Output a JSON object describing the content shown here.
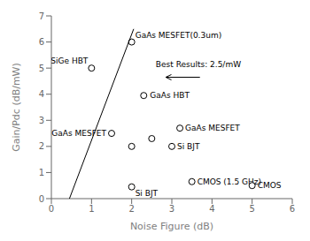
{
  "chart_data": {
    "type": "scatter",
    "xlabel": "Noise Figure (dB)",
    "ylabel": "Gain/Pdc (dB/mW)",
    "xlim": [
      0,
      6
    ],
    "ylim": [
      0,
      7
    ],
    "xticks": [
      0,
      1,
      2,
      3,
      4,
      5,
      6
    ],
    "yticks": [
      0,
      1,
      2,
      3,
      4,
      5,
      6,
      7
    ],
    "grid": false,
    "series": [
      {
        "type": "scatter",
        "color": "black",
        "x": [
          2.0,
          1.0,
          2.3,
          1.5,
          2.0,
          2.5,
          3.2,
          3.0,
          2.0,
          3.5,
          5.0
        ],
        "y": [
          6.0,
          5.0,
          3.95,
          2.5,
          2.0,
          2.3,
          2.7,
          2.0,
          0.45,
          0.65,
          0.5
        ],
        "labels": [
          "GaAs MESFET(0.3um)",
          "SiGe HBT",
          "GaAs HBT",
          "GaAs MESFET",
          null,
          null,
          "GaAs MESFET",
          "Si BJT",
          "Si BJT",
          "CMOS (1.5 GHz)",
          "CMOS"
        ]
      },
      {
        "type": "line",
        "color": "black",
        "x": [
          0.45,
          2.05
        ],
        "y": [
          0.0,
          6.5
        ]
      }
    ],
    "arrows": [
      {
        "x": [
          3.7,
          2.85
        ],
        "y": [
          4.65,
          4.65
        ],
        "color": "black"
      }
    ],
    "annotations": [
      {
        "text": "Best Results: 2.5/mW",
        "x": 2.6,
        "y": 5.05
      }
    ]
  }
}
